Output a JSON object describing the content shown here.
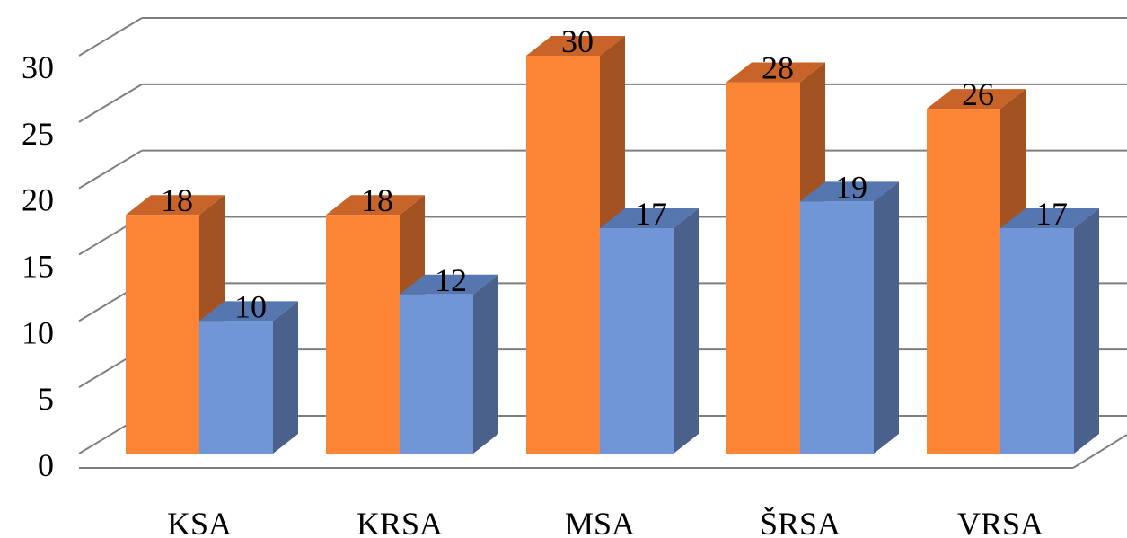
{
  "chart_data": {
    "type": "bar",
    "style": "3d-clustered",
    "categories": [
      "KSA",
      "KRSA",
      "MSA",
      "ŠRSA",
      "VRSA"
    ],
    "series": [
      {
        "values": [
          18,
          18,
          30,
          28,
          26
        ],
        "color": "#fb8535",
        "side_color": "#a35222",
        "top_color": "#c8642a"
      },
      {
        "values": [
          10,
          12,
          17,
          19,
          17
        ],
        "color": "#7096d8",
        "side_color": "#4a618c",
        "top_color": "#5676b0"
      }
    ],
    "y_ticks": [
      "0",
      "5",
      "10",
      "15",
      "20",
      "25",
      "30"
    ],
    "ylim": [
      0,
      30
    ],
    "data_labels": true,
    "grid": true,
    "legend": "none"
  }
}
